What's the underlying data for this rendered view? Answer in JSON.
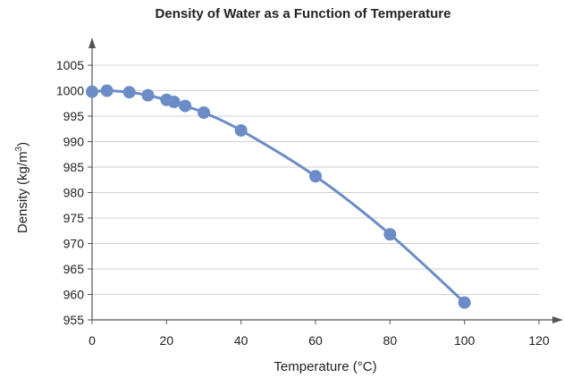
{
  "chart_data": {
    "type": "scatter",
    "title": "Density of Water as a Function of Temperature",
    "xlabel": "Temperature (°C)",
    "ylabel": {
      "prefix": "Density (kg/m",
      "superscript": "3",
      "suffix": ")"
    },
    "xlim": [
      0,
      120
    ],
    "ylim": [
      955,
      1005
    ],
    "xticks": [
      0,
      20,
      40,
      60,
      80,
      100,
      120
    ],
    "yticks": [
      955,
      960,
      965,
      970,
      975,
      980,
      985,
      990,
      995,
      1000,
      1005
    ],
    "grid": "horizontal",
    "legend": "none",
    "series": [
      {
        "points": [
          {
            "x": 0,
            "y": 999.8
          },
          {
            "x": 4,
            "y": 1000.0
          },
          {
            "x": 10,
            "y": 999.7
          },
          {
            "x": 15,
            "y": 999.1
          },
          {
            "x": 20,
            "y": 998.2
          },
          {
            "x": 22,
            "y": 997.8
          },
          {
            "x": 25,
            "y": 997.0
          },
          {
            "x": 30,
            "y": 995.7
          },
          {
            "x": 40,
            "y": 992.2
          },
          {
            "x": 60,
            "y": 983.2
          },
          {
            "x": 80,
            "y": 971.8
          },
          {
            "x": 100,
            "y": 958.4
          }
        ]
      }
    ],
    "colors": {
      "series": "#6b8cc7",
      "axis": "#555555",
      "grid": "#d0d0d0"
    }
  }
}
